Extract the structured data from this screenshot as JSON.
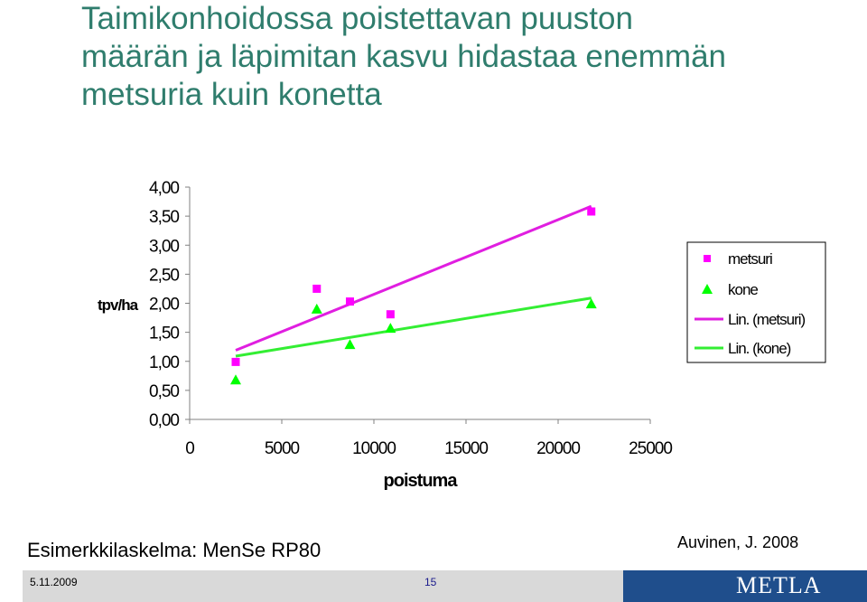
{
  "slide": {
    "title_lines": [
      "Taimikonhoidossa poistettavan puuston",
      "määrän ja läpimitan kasvu hidastaa enemmän",
      "metsuria kuin konetta"
    ],
    "note": "Esimerkkilaskelma: MenSe RP80",
    "author": "Auvinen, J. 2008",
    "date": "5.11.2009",
    "page_number": "15",
    "logo_text": "METLA"
  },
  "colors": {
    "title": "#2f7d6d",
    "metsuri": "#ff00ff",
    "kone": "#00ff00",
    "metsuri_line": "#e01ee0",
    "kone_line": "#33ee33"
  },
  "chart_data": {
    "type": "scatter",
    "xlabel": "poistuma",
    "ylabel": "tpv/ha",
    "xlim": [
      0,
      25000
    ],
    "ylim": [
      0,
      4
    ],
    "x_ticks": [
      "0",
      "5000",
      "10000",
      "15000",
      "20000",
      "25000"
    ],
    "y_ticks": [
      "0,00",
      "0,50",
      "1,00",
      "1,50",
      "2,00",
      "2,50",
      "3,00",
      "3,50",
      "4,00"
    ],
    "grid": false,
    "legend_position": "right",
    "series": [
      {
        "name": "metsuri",
        "marker": "square",
        "x": [
          2500,
          6900,
          8700,
          10900,
          21800
        ],
        "y": [
          0.99,
          2.25,
          2.03,
          1.81,
          3.58
        ]
      },
      {
        "name": "kone",
        "marker": "triangle",
        "x": [
          2500,
          6900,
          8700,
          10900,
          21800
        ],
        "y": [
          0.68,
          1.9,
          1.29,
          1.57,
          1.99
        ]
      }
    ],
    "trendlines": [
      {
        "name": "Lin. (metsuri)",
        "of": "metsuri",
        "x": [
          2500,
          21800
        ],
        "y": [
          1.19,
          3.67
        ]
      },
      {
        "name": "Lin. (kone)",
        "of": "kone",
        "x": [
          2500,
          21800
        ],
        "y": [
          1.09,
          2.09
        ]
      }
    ]
  }
}
